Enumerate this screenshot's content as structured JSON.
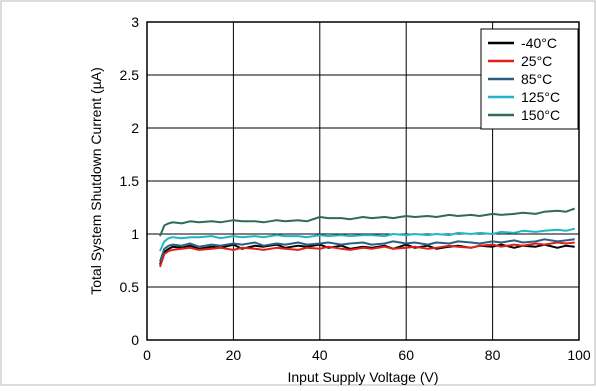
{
  "chart_data": {
    "type": "line",
    "title": "",
    "xlabel": "Input Supply Voltage (V)",
    "ylabel": "Total System Shutdown Current (µA)",
    "xlim": [
      0,
      100
    ],
    "ylim": [
      0,
      3
    ],
    "xticks": [
      0,
      20,
      40,
      60,
      80,
      100
    ],
    "yticks": [
      0,
      0.5,
      1,
      1.5,
      2,
      2.5,
      3
    ],
    "xtick_labels": [
      "0",
      "20",
      "40",
      "60",
      "80",
      100
    ],
    "ytick_labels": [
      "0",
      "0.5",
      "1",
      "1.5",
      "2",
      "2.5",
      "3"
    ],
    "grid": true,
    "legend_position": "top-right",
    "x": [
      3,
      4,
      5,
      6,
      8,
      10,
      12,
      15,
      17,
      20,
      22,
      25,
      27,
      30,
      32,
      35,
      37,
      40,
      42,
      45,
      47,
      50,
      52,
      55,
      57,
      60,
      62,
      65,
      67,
      70,
      72,
      75,
      77,
      80,
      82,
      85,
      87,
      90,
      92,
      95,
      97,
      99
    ],
    "series": [
      {
        "name": "-40°C",
        "color": "#000000",
        "values": [
          0.71,
          0.83,
          0.86,
          0.88,
          0.87,
          0.89,
          0.86,
          0.88,
          0.87,
          0.9,
          0.86,
          0.89,
          0.88,
          0.9,
          0.87,
          0.89,
          0.88,
          0.9,
          0.87,
          0.89,
          0.86,
          0.88,
          0.87,
          0.89,
          0.86,
          0.9,
          0.87,
          0.89,
          0.86,
          0.88,
          0.89,
          0.87,
          0.89,
          0.88,
          0.9,
          0.87,
          0.89,
          0.88,
          0.9,
          0.87,
          0.89,
          0.88
        ]
      },
      {
        "name": "25°C",
        "color": "#e0201b",
        "values": [
          0.69,
          0.81,
          0.84,
          0.85,
          0.86,
          0.87,
          0.85,
          0.86,
          0.87,
          0.85,
          0.87,
          0.86,
          0.85,
          0.87,
          0.86,
          0.85,
          0.87,
          0.86,
          0.88,
          0.86,
          0.85,
          0.87,
          0.86,
          0.88,
          0.86,
          0.87,
          0.88,
          0.86,
          0.87,
          0.89,
          0.88,
          0.87,
          0.89,
          0.9,
          0.88,
          0.9,
          0.89,
          0.91,
          0.9,
          0.92,
          0.91,
          0.92
        ]
      },
      {
        "name": "85°C",
        "color": "#2a5f80",
        "values": [
          0.74,
          0.86,
          0.89,
          0.9,
          0.89,
          0.91,
          0.88,
          0.9,
          0.89,
          0.91,
          0.9,
          0.92,
          0.89,
          0.91,
          0.9,
          0.92,
          0.9,
          0.91,
          0.92,
          0.9,
          0.91,
          0.92,
          0.9,
          0.91,
          0.93,
          0.91,
          0.92,
          0.9,
          0.92,
          0.91,
          0.93,
          0.92,
          0.91,
          0.93,
          0.92,
          0.94,
          0.92,
          0.93,
          0.95,
          0.93,
          0.94,
          0.95
        ]
      },
      {
        "name": "125°C",
        "color": "#1fb5c8",
        "values": [
          0.84,
          0.93,
          0.96,
          0.97,
          0.96,
          0.97,
          0.97,
          0.98,
          0.96,
          0.98,
          0.97,
          0.98,
          0.97,
          0.99,
          0.98,
          0.98,
          0.97,
          0.99,
          0.98,
          0.99,
          0.98,
          0.99,
          0.99,
          0.98,
          1.0,
          0.99,
          1.0,
          0.99,
          1.0,
          0.99,
          1.01,
          1.0,
          1.01,
          1.0,
          1.02,
          1.01,
          1.03,
          1.02,
          1.03,
          1.04,
          1.03,
          1.05
        ]
      },
      {
        "name": "150°C",
        "color": "#2e6b58",
        "values": [
          0.98,
          1.08,
          1.1,
          1.11,
          1.1,
          1.12,
          1.11,
          1.12,
          1.11,
          1.13,
          1.12,
          1.12,
          1.11,
          1.13,
          1.12,
          1.13,
          1.12,
          1.16,
          1.15,
          1.15,
          1.14,
          1.16,
          1.15,
          1.16,
          1.15,
          1.17,
          1.16,
          1.17,
          1.16,
          1.18,
          1.17,
          1.18,
          1.17,
          1.19,
          1.18,
          1.19,
          1.2,
          1.19,
          1.21,
          1.22,
          1.21,
          1.24
        ]
      }
    ]
  }
}
